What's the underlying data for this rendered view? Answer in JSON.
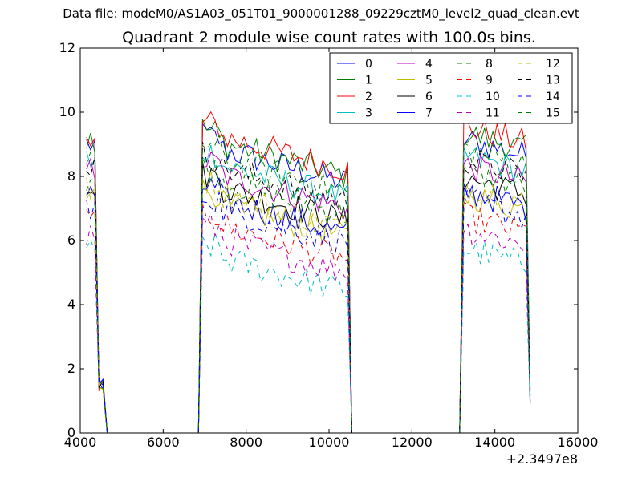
{
  "suptitle": "Data file: modeM0/AS1A03_051T01_9000001288_09229cztM0_level2_quad_clean.evt",
  "chart_data": {
    "type": "line",
    "title": "Quadrant 2 module wise count rates with 100.0s bins.",
    "xlabel": "",
    "ylabel": "",
    "xlim": [
      4000,
      16000
    ],
    "ylim": [
      0,
      12
    ],
    "xticks": [
      4000,
      6000,
      8000,
      10000,
      12000,
      14000,
      16000
    ],
    "yticks": [
      0,
      2,
      4,
      6,
      8,
      10,
      12
    ],
    "x_offset_label": "+2.3497e8",
    "bin_seconds": 100,
    "legend_position": "top-right",
    "segments": [
      {
        "start": 4150,
        "end": 4550
      },
      {
        "start": 6950,
        "end": 10450
      },
      {
        "start": 13250,
        "end": 14850
      }
    ],
    "series": [
      {
        "name": "0",
        "color": "#0000ff",
        "style": "solid",
        "level": 9.0
      },
      {
        "name": "1",
        "color": "#008000",
        "style": "solid",
        "level": 9.2
      },
      {
        "name": "2",
        "color": "#ff0000",
        "style": "solid",
        "level": 9.4
      },
      {
        "name": "3",
        "color": "#00bfbf",
        "style": "solid",
        "level": 8.5
      },
      {
        "name": "4",
        "color": "#bf00bf",
        "style": "solid",
        "level": 8.2
      },
      {
        "name": "5",
        "color": "#bfbf00",
        "style": "solid",
        "level": 7.3
      },
      {
        "name": "6",
        "color": "#000000",
        "style": "solid",
        "level": 7.8
      },
      {
        "name": "7",
        "color": "#0000ff",
        "style": "solid",
        "level": 7.4
      },
      {
        "name": "8",
        "color": "#008000",
        "style": "dashed",
        "level": 8.0
      },
      {
        "name": "9",
        "color": "#ff0000",
        "style": "dashed",
        "level": 6.6
      },
      {
        "name": "10",
        "color": "#00bfbf",
        "style": "dashed",
        "level": 5.6
      },
      {
        "name": "11",
        "color": "#bf00bf",
        "style": "dashed",
        "level": 6.2
      },
      {
        "name": "12",
        "color": "#bfbf00",
        "style": "dashed",
        "level": 7.6
      },
      {
        "name": "13",
        "color": "#000000",
        "style": "dashed",
        "level": 8.4
      },
      {
        "name": "14",
        "color": "#0000ff",
        "style": "dashed",
        "level": 7.1
      },
      {
        "name": "15",
        "color": "#008000",
        "style": "dashed",
        "level": 8.7
      }
    ]
  }
}
